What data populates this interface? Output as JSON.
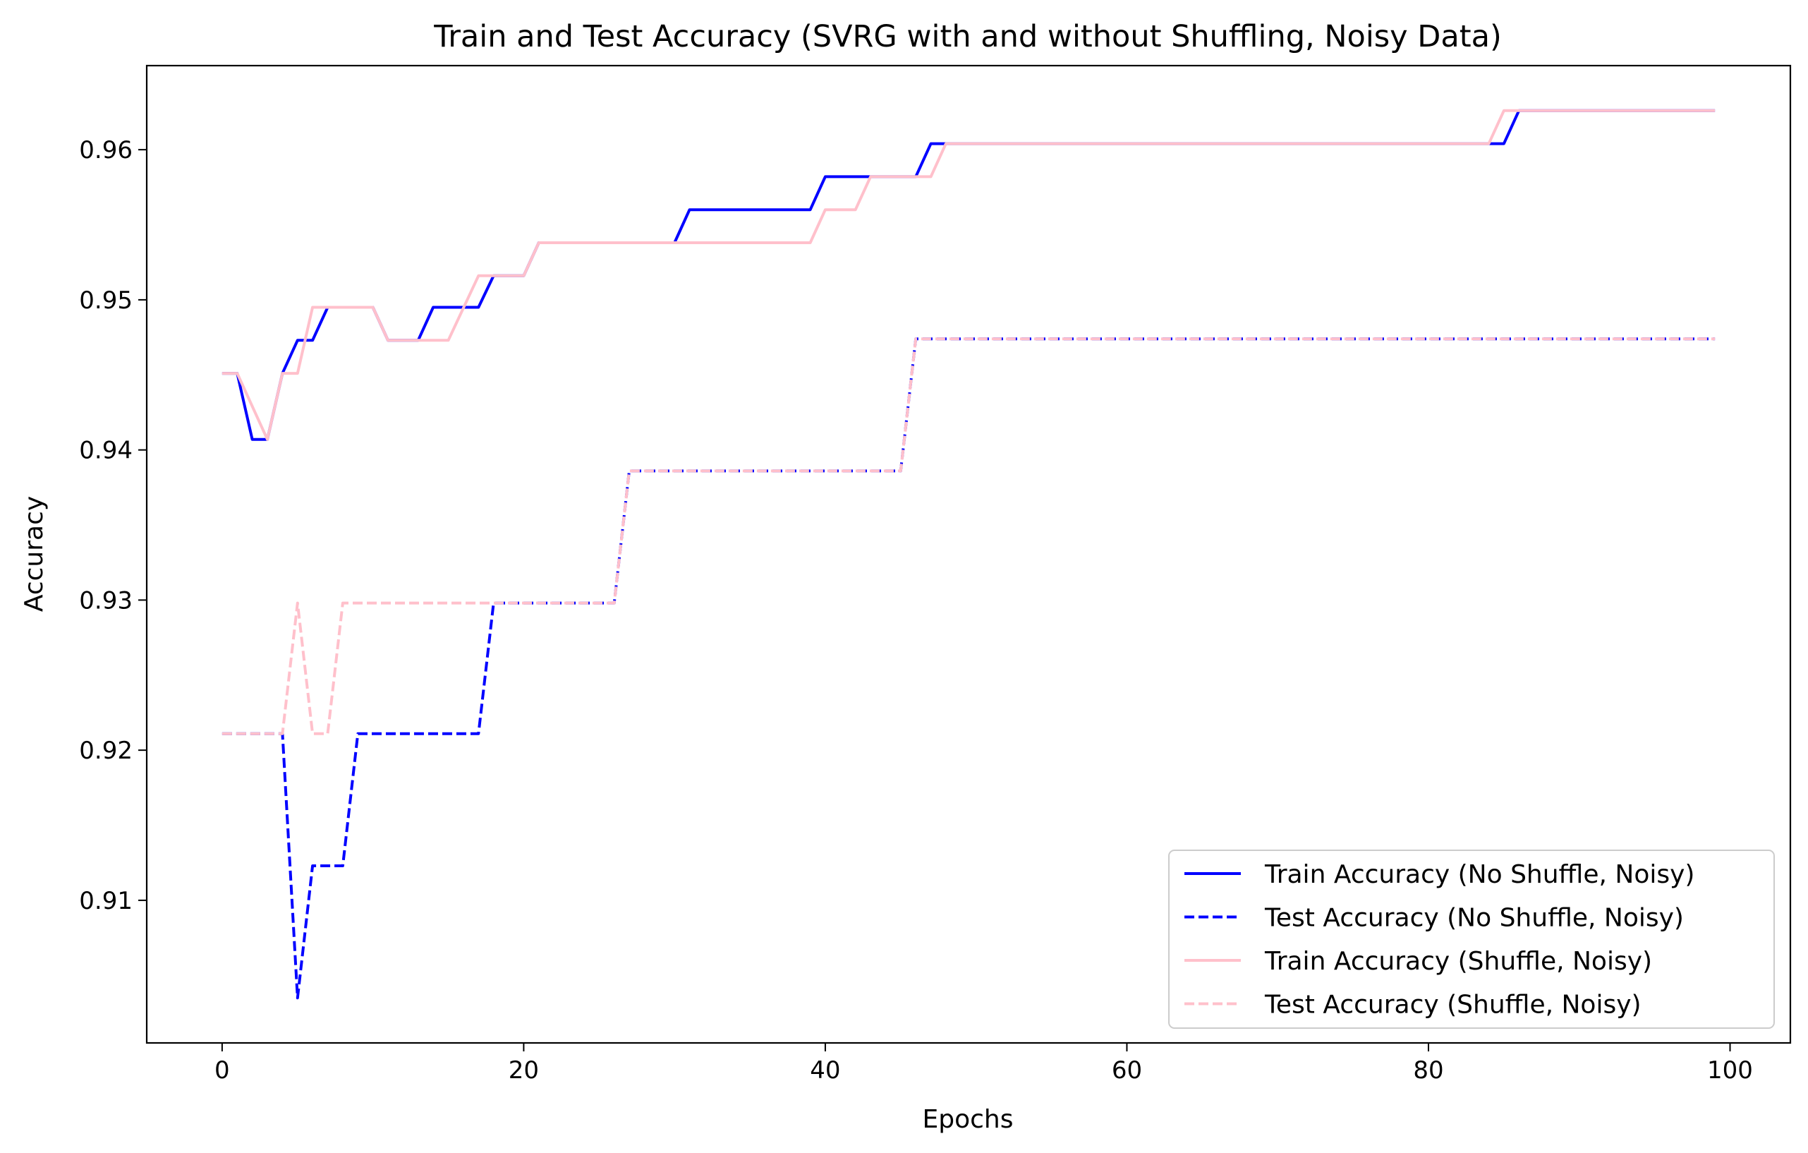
{
  "chart_data": {
    "type": "line",
    "title": "Train and Test Accuracy (SVRG with and without Shuffling, Noisy Data)",
    "xlabel": "Epochs",
    "ylabel": "Accuracy",
    "xlim": [
      -5,
      104
    ],
    "ylim": [
      0.9005,
      0.9656
    ],
    "xticks": [
      0,
      20,
      40,
      60,
      80,
      100
    ],
    "yticks": [
      0.91,
      0.92,
      0.93,
      0.94,
      0.95,
      0.96
    ],
    "grid": false,
    "legend_position": "lower-right",
    "series": [
      {
        "name": "Train Accuracy (No Shuffle, Noisy)",
        "color": "#0000ff",
        "dash": "solid",
        "points": [
          [
            0,
            0.9451
          ],
          [
            1,
            0.9451
          ],
          [
            2,
            0.9407
          ],
          [
            3,
            0.9407
          ],
          [
            4,
            0.9451
          ],
          [
            5,
            0.9473
          ],
          [
            6,
            0.9473
          ],
          [
            7,
            0.9495
          ],
          [
            10,
            0.9495
          ],
          [
            11,
            0.9473
          ],
          [
            13,
            0.9473
          ],
          [
            14,
            0.9495
          ],
          [
            17,
            0.9495
          ],
          [
            18,
            0.9516
          ],
          [
            20,
            0.9516
          ],
          [
            21,
            0.9538
          ],
          [
            30,
            0.9538
          ],
          [
            31,
            0.956
          ],
          [
            39,
            0.956
          ],
          [
            40,
            0.9582
          ],
          [
            45,
            0.9582
          ],
          [
            46,
            0.9582
          ],
          [
            47,
            0.9604
          ],
          [
            85,
            0.9604
          ],
          [
            86,
            0.9626
          ],
          [
            99,
            0.9626
          ]
        ]
      },
      {
        "name": "Test Accuracy (No Shuffle, Noisy)",
        "color": "#0000ff",
        "dash": "dashed",
        "points": [
          [
            0,
            0.9211
          ],
          [
            4,
            0.9211
          ],
          [
            5,
            0.9035
          ],
          [
            6,
            0.9123
          ],
          [
            8,
            0.9123
          ],
          [
            9,
            0.9211
          ],
          [
            17,
            0.9211
          ],
          [
            18,
            0.9298
          ],
          [
            26,
            0.9298
          ],
          [
            27,
            0.9386
          ],
          [
            45,
            0.9386
          ],
          [
            46,
            0.9474
          ],
          [
            99,
            0.9474
          ]
        ]
      },
      {
        "name": "Train Accuracy (Shuffle, Noisy)",
        "color": "#ffc0cb",
        "dash": "solid",
        "points": [
          [
            0,
            0.9451
          ],
          [
            1,
            0.9451
          ],
          [
            3,
            0.9407
          ],
          [
            4,
            0.9451
          ],
          [
            5,
            0.9451
          ],
          [
            6,
            0.9495
          ],
          [
            10,
            0.9495
          ],
          [
            11,
            0.9473
          ],
          [
            15,
            0.9473
          ],
          [
            17,
            0.9516
          ],
          [
            20,
            0.9516
          ],
          [
            21,
            0.9538
          ],
          [
            39,
            0.9538
          ],
          [
            40,
            0.956
          ],
          [
            42,
            0.956
          ],
          [
            43,
            0.9582
          ],
          [
            47,
            0.9582
          ],
          [
            48,
            0.9604
          ],
          [
            84,
            0.9604
          ],
          [
            85,
            0.9626
          ],
          [
            99,
            0.9626
          ]
        ]
      },
      {
        "name": "Test Accuracy (Shuffle, Noisy)",
        "color": "#ffc0cb",
        "dash": "dashed",
        "points": [
          [
            0,
            0.9211
          ],
          [
            4,
            0.9211
          ],
          [
            5,
            0.9298
          ],
          [
            6,
            0.9211
          ],
          [
            7,
            0.9211
          ],
          [
            8,
            0.9298
          ],
          [
            26,
            0.9298
          ],
          [
            27,
            0.9386
          ],
          [
            45,
            0.9386
          ],
          [
            46,
            0.9474
          ],
          [
            99,
            0.9474
          ]
        ]
      }
    ]
  }
}
